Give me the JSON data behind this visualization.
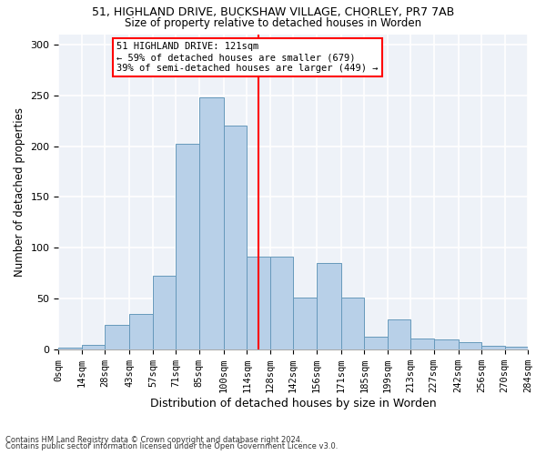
{
  "title1": "51, HIGHLAND DRIVE, BUCKSHAW VILLAGE, CHORLEY, PR7 7AB",
  "title2": "Size of property relative to detached houses in Worden",
  "xlabel": "Distribution of detached houses by size in Worden",
  "ylabel": "Number of detached properties",
  "bar_color": "#b8d0e8",
  "bar_edge_color": "#6699bb",
  "annotation_line_color": "red",
  "property_size": 121,
  "annotation_text_line1": "51 HIGHLAND DRIVE: 121sqm",
  "annotation_text_line2": "← 59% of detached houses are smaller (679)",
  "annotation_text_line3": "39% of semi-detached houses are larger (449) →",
  "footnote1": "Contains HM Land Registry data © Crown copyright and database right 2024.",
  "footnote2": "Contains public sector information licensed under the Open Government Licence v3.0.",
  "bin_edges": [
    0,
    14,
    28,
    43,
    57,
    71,
    85,
    100,
    114,
    128,
    142,
    156,
    171,
    185,
    199,
    213,
    227,
    242,
    256,
    270,
    284
  ],
  "bar_heights": [
    2,
    5,
    24,
    35,
    73,
    202,
    248,
    220,
    91,
    91,
    51,
    85,
    51,
    13,
    30,
    11,
    10,
    7,
    4,
    3
  ],
  "ylim": [
    0,
    310
  ],
  "yticks": [
    0,
    50,
    100,
    150,
    200,
    250,
    300
  ],
  "background_color": "#eef2f8",
  "grid_color": "#ffffff",
  "fig_background": "#ffffff"
}
